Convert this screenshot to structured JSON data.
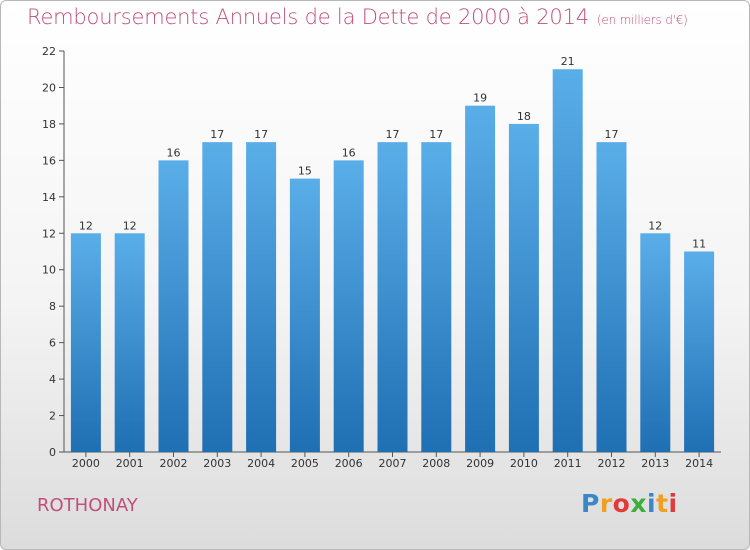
{
  "header": {
    "title": "Remboursements Annuels de la Dette de 2000 à 2014",
    "unit": "(en milliers d'€)"
  },
  "footer": {
    "commune": "ROTHONAY",
    "logo_letters": [
      "P",
      "r",
      "o",
      "x",
      "i",
      "t",
      "i"
    ],
    "logo_colors": [
      "#3a86c8",
      "#f0a020",
      "#e23a3a",
      "#3cae3c",
      "#3a86c8",
      "#f0a020",
      "#e23a3a"
    ]
  },
  "chart_data": {
    "type": "bar",
    "categories": [
      "2000",
      "2001",
      "2002",
      "2003",
      "2004",
      "2005",
      "2006",
      "2007",
      "2008",
      "2009",
      "2010",
      "2011",
      "2012",
      "2013",
      "2014"
    ],
    "values": [
      12,
      12,
      16,
      17,
      17,
      15,
      16,
      17,
      17,
      19,
      18,
      21,
      17,
      12,
      11
    ],
    "ylim": [
      0,
      22
    ],
    "yticks": [
      0,
      2,
      4,
      6,
      8,
      10,
      12,
      14,
      16,
      18,
      20,
      22
    ],
    "grid": false,
    "bar_color_top": "#5aaee8",
    "bar_color_bottom": "#1f6fb3"
  }
}
